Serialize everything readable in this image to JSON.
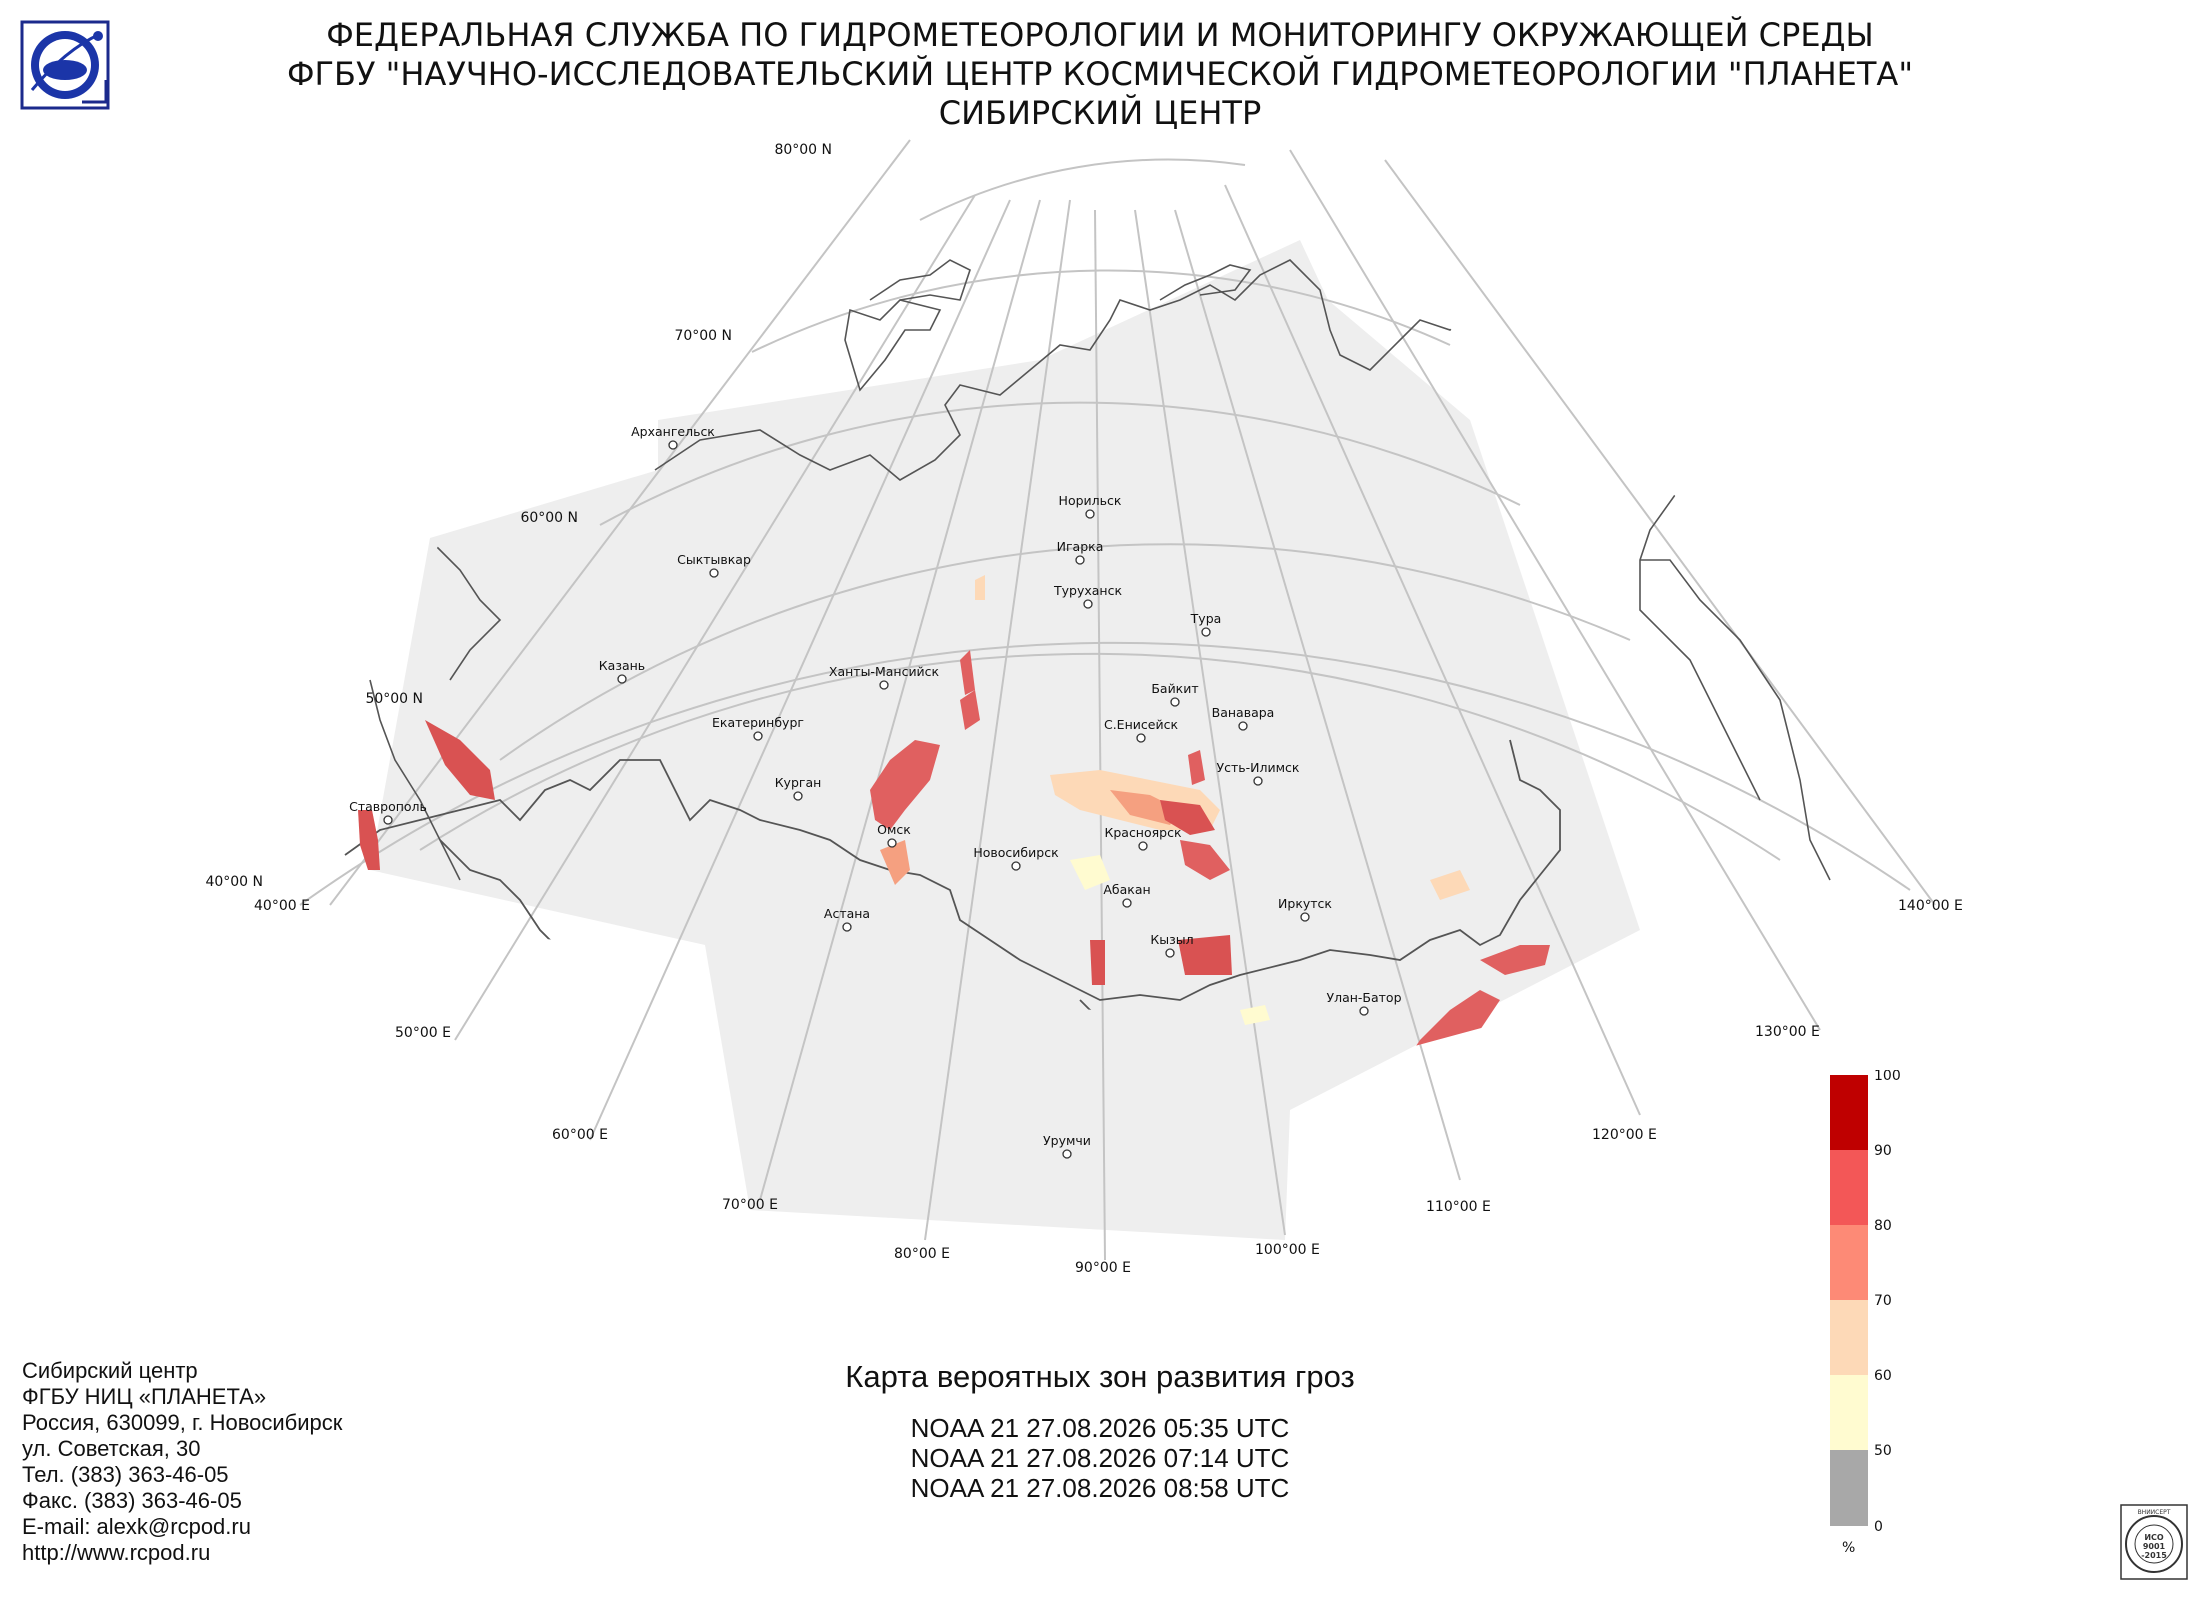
{
  "header": {
    "line1": "ФЕДЕРАЛЬНАЯ СЛУЖБА ПО ГИДРОМЕТЕОРОЛОГИИ И МОНИТОРИНГУ ОКРУЖАЮЩЕЙ СРЕДЫ",
    "line2": "ФГБУ \"НАУЧНО-ИССЛЕДОВАТЕЛЬСКИЙ ЦЕНТР КОСМИЧЕСКОЙ ГИДРОМЕТЕОРОЛОГИИ \"ПЛАНЕТА\"",
    "line3": "СИБИРСКИЙ ЦЕНТР"
  },
  "map": {
    "lat_labels": [
      "80°00 N",
      "70°00 N",
      "60°00 N",
      "50°00 N",
      "40°00 N"
    ],
    "lon_labels": [
      "40°00 E",
      "50°00 E",
      "60°00 E",
      "70°00 E",
      "80°00 E",
      "90°00 E",
      "100°00 E",
      "110°00 E",
      "120°00 E",
      "130°00 E",
      "140°00 E"
    ],
    "cities": [
      "Архангельск",
      "Сыктывкар",
      "Казань",
      "Екатеринбург",
      "Курган",
      "Ханты-Мансийск",
      "Омск",
      "Астана",
      "Новосибирск",
      "Норильск",
      "Игарка",
      "Туруханск",
      "Тура",
      "Байкит",
      "Ванавара",
      "С.Енисейск",
      "Усть-Илимск",
      "Красноярск",
      "Абакан",
      "Иркутск",
      "Кызыл",
      "Улан-Батор",
      "Урумчи",
      "Ставрополь"
    ],
    "colors": {
      "coverage": "#eeeeee",
      "grid": "#c4c4c4",
      "border": "#555555"
    }
  },
  "caption": {
    "title": "Карта вероятных зон развития гроз",
    "passes": [
      "NOAA 21 27.08.2026  05:35 UTC",
      "NOAA 21 27.08.2026  07:14 UTC",
      "NOAA 21 27.08.2026  08:58 UTC"
    ]
  },
  "legend": {
    "ticks": [
      "100",
      "90",
      "80",
      "70",
      "60",
      "50",
      "0"
    ],
    "unit": "%",
    "colors": [
      "#bf0000",
      "#f35757",
      "#fd8a76",
      "#fdd9b7",
      "#fffbd0",
      "#a8a8a8"
    ]
  },
  "contact": {
    "lines": [
      "Сибирский центр",
      "ФГБУ НИЦ «ПЛАНЕТА»",
      "Россия, 630099, г. Новосибирск",
      "ул. Советская, 30",
      "Тел. (383) 363-46-05",
      "Факс. (383) 363-46-05",
      "E-mail: alexk@rcpod.ru",
      "http://www.rcpod.ru"
    ]
  },
  "iso_badge": {
    "text_lines": [
      "ИСО",
      "9001",
      "-2015"
    ],
    "ring_text": "ВНИИСЕРТ"
  }
}
